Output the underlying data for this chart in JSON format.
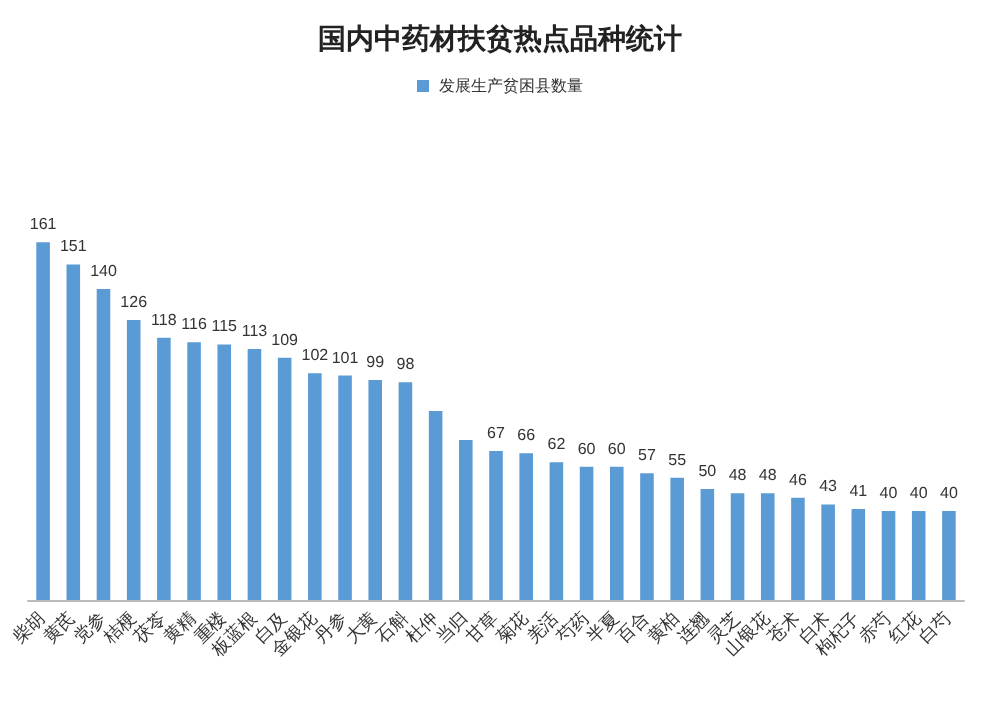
{
  "chart_data": {
    "type": "bar",
    "title": "国内中药材扶贫热点品种统计",
    "categories": [
      "柴胡",
      "黄芪",
      "党参",
      "桔梗",
      "茯苓",
      "黄精",
      "重楼",
      "板蓝根",
      "白及",
      "金银花",
      "丹参",
      "大黄",
      "石斛",
      "杜仲",
      "当归",
      "甘草",
      "菊花",
      "羌活",
      "芍药",
      "半夏",
      "百合",
      "黄柏",
      "连翘",
      "灵芝",
      "山银花",
      "苍术",
      "白术",
      "枸杞子",
      "赤芍",
      "红花",
      "白芍"
    ],
    "series": [
      {
        "name": "发展生产贫困县数量",
        "color": "#5b9bd5",
        "values": [
          161,
          151,
          140,
          126,
          118,
          116,
          115,
          113,
          109,
          102,
          101,
          99,
          98,
          85,
          72,
          67,
          66,
          62,
          60,
          60,
          57,
          55,
          50,
          48,
          48,
          46,
          43,
          41,
          40,
          40,
          40
        ],
        "value_labels": [
          "161",
          "151",
          "140",
          "126",
          "118",
          "116",
          "115",
          "113",
          "109",
          "102",
          "101",
          "99",
          "98",
          null,
          null,
          "67",
          "66",
          "62",
          "60",
          "60",
          "57",
          "55",
          "50",
          "48",
          "48",
          "46",
          "43",
          "41",
          "40",
          "40",
          "40"
        ]
      }
    ],
    "tick_labels": "x",
    "legend": "top"
  }
}
